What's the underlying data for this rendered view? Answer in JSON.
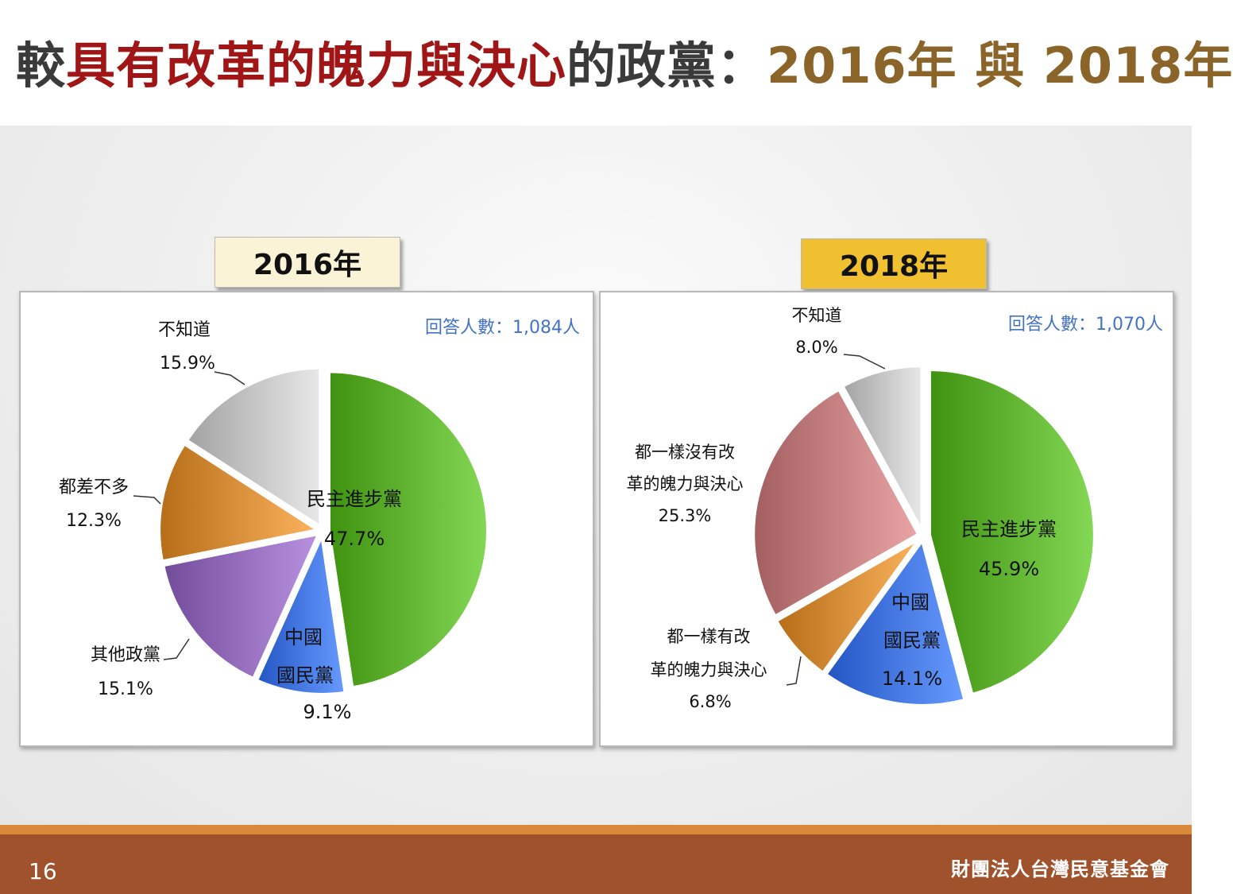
{
  "title": {
    "segments": [
      {
        "text": "較",
        "color": "#3a3a3a"
      },
      {
        "text": "具有改革的魄力與決心",
        "color": "#a01616"
      },
      {
        "text": "的政黨：",
        "color": "#3a3a3a"
      },
      {
        "text": "2016年 與 2018年",
        "color": "#8a6428"
      }
    ]
  },
  "charts": [
    {
      "year_label": "2016年",
      "respondents": "回答人數：1,084人",
      "box_color": "#fbf3d5"
    },
    {
      "year_label": "2018年",
      "respondents": "回答人數：1,070人",
      "box_color": "#f0c030"
    }
  ],
  "chart_data": [
    {
      "type": "pie",
      "title": "2016年",
      "slices": [
        {
          "label": "民主進步黨",
          "value": 47.7,
          "value_text": "47.7%",
          "color": "#6cbf3c"
        },
        {
          "label": "中國國民黨",
          "value": 9.1,
          "value_text": "9.1%",
          "color": "#4f82f0"
        },
        {
          "label": "其他政黨",
          "value": 15.1,
          "value_text": "15.1%",
          "color": "#9f78c8"
        },
        {
          "label": "都差不多",
          "value": 12.3,
          "value_text": "12.3%",
          "color": "#e39a45"
        },
        {
          "label": "不知道",
          "value": 15.9,
          "value_text": "15.9%",
          "color": "#cfcfcf"
        }
      ]
    },
    {
      "type": "pie",
      "title": "2018年",
      "slices": [
        {
          "label": "民主進步黨",
          "value": 45.9,
          "value_text": "45.9%",
          "color": "#6cbf3c"
        },
        {
          "label": "中國國民黨",
          "value": 14.1,
          "value_text": "14.1%",
          "color": "#4f82f0"
        },
        {
          "label": "都一樣有改革的魄力與決心",
          "value": 6.8,
          "value_text": "6.8%",
          "color": "#e39a45"
        },
        {
          "label": "都一樣沒有改革的魄力與決心",
          "value": 25.3,
          "value_text": "25.3%",
          "color": "#d08c8c"
        },
        {
          "label": "不知道",
          "value": 8.0,
          "value_text": "8.0%",
          "color": "#cfcfcf"
        }
      ]
    }
  ],
  "footer": {
    "page_number": "16",
    "organization": "財團法人台灣民意基金會"
  }
}
